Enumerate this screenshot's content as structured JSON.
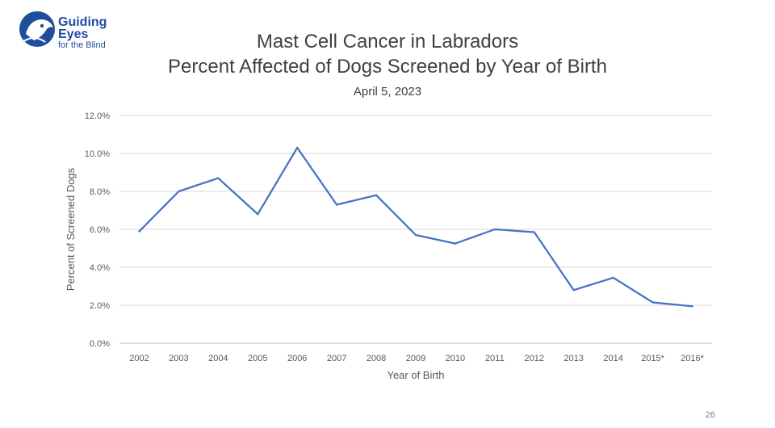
{
  "logo": {
    "line1": "Guiding",
    "line2": "Eyes",
    "line3": "for the Blind",
    "color": "#1f4e9d"
  },
  "page_number": "26",
  "chart_data": {
    "type": "line",
    "title": "Mast Cell Cancer in Labradors",
    "subtitle": "Percent Affected of Dogs Screened by Year of Birth",
    "date": "April 5, 2023",
    "xlabel": "Year of Birth",
    "ylabel": "Percent of Screened Dogs",
    "categories": [
      "2002",
      "2003",
      "2004",
      "2005",
      "2006",
      "2007",
      "2008",
      "2009",
      "2010",
      "2011",
      "2012",
      "2013",
      "2014",
      "2015*",
      "2016*"
    ],
    "series": [
      {
        "values": [
          5.9,
          8.0,
          8.7,
          6.8,
          10.3,
          7.3,
          7.8,
          5.7,
          5.25,
          6.0,
          5.85,
          2.8,
          3.45,
          2.15,
          1.95
        ],
        "color": "#4472c4"
      }
    ],
    "ylim": [
      0,
      12
    ],
    "yticks": [
      "0.0%",
      "2.0%",
      "4.0%",
      "6.0%",
      "8.0%",
      "10.0%",
      "12.0%"
    ],
    "grid": true,
    "legend": "none"
  }
}
